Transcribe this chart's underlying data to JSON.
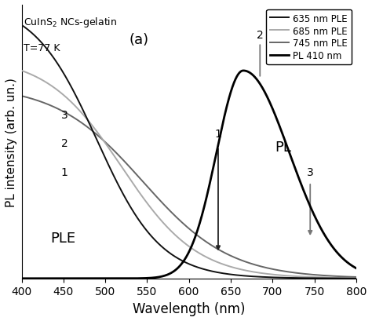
{
  "xlabel": "Wavelength (nm)",
  "ylabel": "PL intensity (arb. un.)",
  "xlim": [
    400,
    800
  ],
  "ylim": [
    0,
    1.08
  ],
  "legend_entries": [
    "635 nm PLE",
    "685 nm PLE",
    "745 nm PLE",
    "PL 410 nm"
  ],
  "legend_colors": [
    "#111111",
    "#aaaaaa",
    "#666666",
    "#000000"
  ],
  "legend_linewidths": [
    1.4,
    1.4,
    1.4,
    2.0
  ],
  "ple_colors": [
    "#111111",
    "#aaaaaa",
    "#666666"
  ],
  "pl_color": "#000000",
  "pl_linewidth": 2.0,
  "ple_linewidth": 1.4,
  "marker1_x": 635,
  "marker2_x": 685,
  "marker3_x": 745,
  "background_color": "#ffffff",
  "xticks": [
    400,
    450,
    500,
    550,
    600,
    650,
    700,
    750,
    800
  ]
}
